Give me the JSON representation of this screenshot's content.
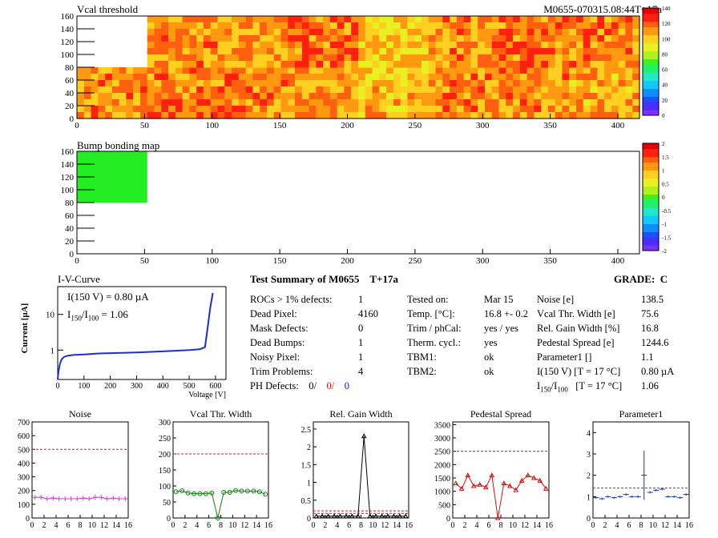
{
  "page": {
    "header_id": "M0655-070315.08:44T+17a"
  },
  "colors": {
    "threshold_palette": [
      "#7f2fff",
      "#4a2fff",
      "#1f4fff",
      "#0f8fff",
      "#10c9ff",
      "#20e8c8",
      "#20f070",
      "#40f020",
      "#b0f020",
      "#e8f020",
      "#ffd020",
      "#ff9a10",
      "#ff6010",
      "#ff2010",
      "#e80000"
    ],
    "bump_fill": "#22ee22",
    "iv_curve": "#1a2fd0",
    "noise_series": "#d040d0",
    "vcal_series": "#108010",
    "gain_series": "#000000",
    "pedestal_series": "#d01010",
    "param1_series": "#1030c0",
    "limit_line": "#cc2020"
  },
  "map_vcal": {
    "title": "Vcal threshold",
    "xticks": [
      "0",
      "50",
      "100",
      "150",
      "200",
      "250",
      "300",
      "350",
      "400"
    ],
    "yticks": [
      "0",
      "20",
      "40",
      "60",
      "80",
      "100",
      "120",
      "140",
      "160"
    ],
    "scale_ticks": [
      "0",
      "20",
      "40",
      "60",
      "80",
      "100",
      "120",
      "140"
    ]
  },
  "map_bump": {
    "title": "Bump bonding map",
    "xticks": [
      "0",
      "50",
      "100",
      "150",
      "200",
      "250",
      "300",
      "350",
      "400"
    ],
    "yticks": [
      "0",
      "20",
      "40",
      "60",
      "80",
      "100",
      "120",
      "140",
      "160"
    ],
    "scale_ticks": [
      "-2",
      "-1.5",
      "-1",
      "-0.5",
      "0",
      "0.5",
      "1",
      "1.5",
      "2"
    ]
  },
  "iv": {
    "title": "I-V-Curve",
    "ylabel": "Current [µA]",
    "xlabel": "Voltage [V]",
    "xticks": [
      "0",
      "100",
      "200",
      "300",
      "400",
      "500",
      "600"
    ],
    "yticks": [
      "1",
      "10"
    ],
    "annot1": "I(150 V) = 0.80 µA",
    "annot2_pre": "I",
    "annot2_sub1": "150",
    "annot2_mid": "/I",
    "annot2_sub2": "100",
    "annot2_post": " =  1.06"
  },
  "summary": {
    "title": "Test Summary of M0655",
    "tag": "T+17a",
    "grade_label": "GRADE:",
    "grade": "C",
    "left": [
      {
        "label": "ROCs > 1% defects:",
        "value": "1"
      },
      {
        "label": "Dead Pixel:",
        "value": "4160"
      },
      {
        "label": "Mask Defects:",
        "value": "0"
      },
      {
        "label": "Dead Bumps:",
        "value": "1"
      },
      {
        "label": "Noisy Pixel:",
        "value": "1"
      },
      {
        "label": "Trim Problems:",
        "value": "4"
      }
    ],
    "ph_label": "PH Defects:",
    "ph_values": [
      "0/",
      "0/",
      "0"
    ],
    "middle": [
      {
        "label": "Tested on:",
        "value": "Mar 15"
      },
      {
        "label": "Temp. [°C]:",
        "value": "16.8 +- 0.2"
      },
      {
        "label": "Trim / phCal:",
        "value": "yes / yes"
      },
      {
        "label": "Therm. cycl.:",
        "value": "yes"
      },
      {
        "label": "TBM1:",
        "value": "ok"
      },
      {
        "label": "TBM2:",
        "value": "ok"
      }
    ],
    "right": [
      {
        "label": "Noise [e]",
        "value": "138.5"
      },
      {
        "label": "Vcal Thr. Width [e]",
        "value": "75.6"
      },
      {
        "label": "Rel. Gain Width [%]",
        "value": "16.8"
      },
      {
        "label": "Pedestal Spread [e]",
        "value": "1244.6"
      },
      {
        "label": "Parameter1 []",
        "value": "1.1"
      },
      {
        "label": "I(150 V) [T = 17 °C]",
        "value": "0.80 µA"
      }
    ],
    "ratio_row": {
      "pre": "I",
      "sub1": "150",
      "mid": "/I",
      "sub2": "100",
      "post": "   [T = 17 °C]",
      "value": "1.06"
    }
  },
  "chart_data": [
    {
      "type": "heatmap",
      "title": "Vcal threshold",
      "xlim": [
        0,
        416
      ],
      "ylim": [
        0,
        160
      ],
      "z_range": [
        0,
        140
      ],
      "note_cells": "2x8 grid of readout chips; chip at x 0-52, y 80-160 has no response",
      "roc_mean": [
        [
          112,
          118,
          115,
          110,
          104,
          115,
          112,
          108
        ],
        [
          null,
          112,
          110,
          118,
          100,
          112,
          118,
          116
        ]
      ]
    },
    {
      "type": "heatmap",
      "title": "Bump bonding map",
      "xlim": [
        0,
        416
      ],
      "ylim": [
        0,
        160
      ],
      "z_range": [
        -2,
        2
      ],
      "regions": [
        {
          "x": [
            0,
            52
          ],
          "y": [
            80,
            160
          ],
          "z": 0.4
        }
      ]
    },
    {
      "type": "line",
      "title": "I-V-Curve",
      "xlabel": "Voltage [V]",
      "ylabel": "Current [µA]",
      "xlim": [
        0,
        640
      ],
      "ylim": [
        0.15,
        60
      ],
      "yscale": "log",
      "x": [
        0,
        3,
        8,
        15,
        25,
        40,
        60,
        100,
        150,
        200,
        300,
        400,
        500,
        540,
        560,
        570,
        580,
        590
      ],
      "y": [
        0.15,
        0.25,
        0.4,
        0.55,
        0.65,
        0.7,
        0.73,
        0.75,
        0.8,
        0.82,
        0.86,
        0.92,
        1.0,
        1.05,
        1.2,
        4,
        15,
        40
      ]
    },
    {
      "type": "line",
      "title": "Noise",
      "xlim": [
        0,
        16
      ],
      "ylim": [
        0,
        700
      ],
      "limit": 500,
      "xticks": [
        "0",
        "2",
        "4",
        "6",
        "8",
        "10",
        "12",
        "14",
        "16"
      ],
      "yticks": [
        "0",
        "100",
        "200",
        "300",
        "400",
        "500",
        "600",
        "700"
      ],
      "x": [
        0,
        1,
        2,
        3,
        4,
        5,
        6,
        7,
        8,
        9,
        10,
        11,
        12,
        13,
        14,
        15
      ],
      "y": [
        150,
        150,
        140,
        145,
        140,
        140,
        140,
        140,
        145,
        140,
        150,
        150,
        140,
        145,
        140,
        140
      ]
    },
    {
      "type": "line",
      "title": "Vcal Thr. Width",
      "xlim": [
        0,
        16
      ],
      "ylim": [
        0,
        300
      ],
      "limit": 200,
      "xticks": [
        "0",
        "2",
        "4",
        "6",
        "8",
        "10",
        "12",
        "14",
        "16"
      ],
      "yticks": [
        "0",
        "50",
        "100",
        "150",
        "200",
        "250",
        "300"
      ],
      "x": [
        0,
        1,
        2,
        3,
        4,
        5,
        6,
        7,
        8,
        9,
        10,
        11,
        12,
        13,
        14,
        15
      ],
      "y": [
        82,
        85,
        78,
        76,
        76,
        76,
        78,
        0,
        80,
        80,
        86,
        84,
        84,
        84,
        82,
        74
      ]
    },
    {
      "type": "line",
      "title": "Rel. Gain Width",
      "xlim": [
        0,
        16
      ],
      "ylim": [
        0,
        2.7
      ],
      "limit": 0.2,
      "xticks": [
        "0",
        "2",
        "4",
        "6",
        "8",
        "10",
        "12",
        "14",
        "16"
      ],
      "yticks": [
        "0",
        "0.5",
        "1",
        "1.5",
        "2",
        "2.5"
      ],
      "x": [
        0,
        1,
        2,
        3,
        4,
        5,
        6,
        7,
        8,
        9,
        10,
        11,
        12,
        13,
        14,
        15
      ],
      "y": [
        0.05,
        0.05,
        0.05,
        0.05,
        0.05,
        0.05,
        0.05,
        0.05,
        2.3,
        0.05,
        0.05,
        0.05,
        0.05,
        0.05,
        0.05,
        0.05
      ]
    },
    {
      "type": "line",
      "title": "Pedestal Spread",
      "xlim": [
        0,
        16
      ],
      "ylim": [
        0,
        3600
      ],
      "limit": 2500,
      "xticks": [
        "0",
        "2",
        "4",
        "6",
        "8",
        "10",
        "12",
        "14",
        "16"
      ],
      "yticks": [
        "0",
        "500",
        "1000",
        "1500",
        "2000",
        "2500",
        "3000",
        "3500"
      ],
      "x": [
        0,
        1,
        2,
        3,
        4,
        5,
        6,
        7,
        8,
        9,
        10,
        11,
        12,
        13,
        14,
        15
      ],
      "y": [
        1300,
        1100,
        1600,
        1200,
        1250,
        1150,
        1600,
        0,
        1300,
        1200,
        1050,
        1400,
        1600,
        1500,
        1400,
        1100
      ]
    },
    {
      "type": "scatter",
      "title": "Parameter1",
      "xlim": [
        0,
        16
      ],
      "ylim": [
        0,
        4.5
      ],
      "xticks": [
        "0",
        "2",
        "4",
        "6",
        "8",
        "10",
        "12",
        "14",
        "16"
      ],
      "yticks": [
        "0",
        "1",
        "2",
        "3",
        "4"
      ],
      "x": [
        0,
        1,
        2,
        3,
        4,
        5,
        6,
        7,
        8,
        9,
        10,
        11,
        12,
        13,
        14,
        15
      ],
      "y": [
        0.95,
        0.9,
        1.0,
        0.95,
        1.0,
        1.1,
        1.0,
        1.0,
        2.0,
        1.2,
        1.3,
        1.35,
        1.0,
        1.0,
        0.95,
        1.1
      ],
      "errors": [
        0.05,
        0.05,
        0.05,
        0.05,
        0.05,
        0.05,
        0.05,
        0.05,
        1.15,
        0.05,
        0.05,
        0.05,
        0.05,
        0.05,
        0.05,
        0.05
      ],
      "ref_line": 1.4
    }
  ]
}
